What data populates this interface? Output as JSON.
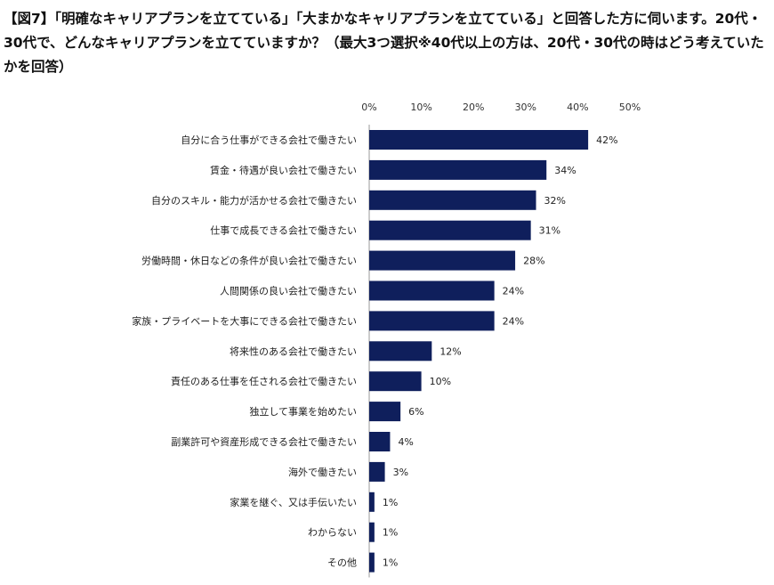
{
  "title": "【図7】「明確なキャリアプランを立てている」「大まかなキャリアプランを立てている」と回答した方に伺います。20代・30代で、どんなキャリアプランを立てていますか？（最大3つ選択※40代以上の方は、20代・30代の時はどう考えていたかを回答）",
  "chart_data": {
    "type": "bar",
    "orientation": "horizontal",
    "title": "",
    "xlabel": "",
    "ylabel": "",
    "xlim": [
      0,
      50
    ],
    "x_ticks": [
      "0%",
      "10%",
      "20%",
      "30%",
      "40%",
      "50%"
    ],
    "x_tick_values": [
      0,
      10,
      20,
      30,
      40,
      50
    ],
    "grid": false,
    "bar_color": "#0f1f5c",
    "categories": [
      "自分に合う仕事ができる会社で働きたい",
      "賃金・待遇が良い会社で働きたい",
      "自分のスキル・能力が活かせる会社で働きたい",
      "仕事で成長できる会社で働きたい",
      "労働時間・休日などの条件が良い会社で働きたい",
      "人間関係の良い会社で働きたい",
      "家族・プライベートを大事にできる会社で働きたい",
      "将来性のある会社で働きたい",
      "責任のある仕事を任される会社で働きたい",
      "独立して事業を始めたい",
      "副業許可や資産形成できる会社で働きたい",
      "海外で働きたい",
      "家業を継ぐ、又は手伝いたい",
      "わからない",
      "その他"
    ],
    "values": [
      42,
      34,
      32,
      31,
      28,
      24,
      24,
      12,
      10,
      6,
      4,
      3,
      1,
      1,
      1
    ],
    "value_labels": [
      "42%",
      "34%",
      "32%",
      "31%",
      "28%",
      "24%",
      "24%",
      "12%",
      "10%",
      "6%",
      "4%",
      "3%",
      "1%",
      "1%",
      "1%"
    ]
  }
}
